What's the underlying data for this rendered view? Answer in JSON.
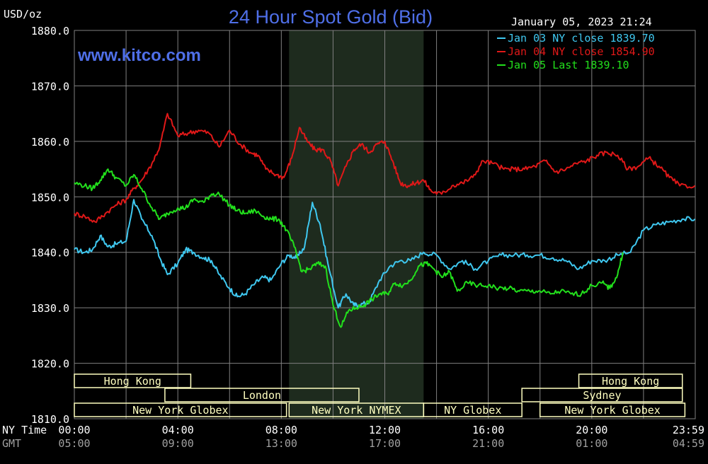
{
  "header": {
    "title": "24 Hour Spot Gold (Bid)",
    "unit_label": "USD/oz",
    "datetime": "January 05, 2023 21:24",
    "watermark": "www.kitco.com"
  },
  "colors": {
    "background": "#000000",
    "grid": "#808080",
    "title": "#4f6fe8",
    "text": "#ffffff",
    "session_label_bg": "#ffffc0",
    "session_label_text": "#000000",
    "shade": "#1e2b1e"
  },
  "chart_data": {
    "type": "line",
    "title": "24 Hour Spot Gold (Bid)",
    "ylabel": "USD/oz",
    "ylim": [
      1810.0,
      1880.0
    ],
    "y_ticks": [
      "1810.0",
      "1820.0",
      "1830.0",
      "1840.0",
      "1850.0",
      "1860.0",
      "1870.0",
      "1880.0"
    ],
    "x_range_hours": [
      0,
      24
    ],
    "x_axis_rows": [
      {
        "label": "NY Time",
        "ticks": [
          "00:00",
          "04:00",
          "08:00",
          "12:00",
          "16:00",
          "20:00",
          "23:59"
        ]
      },
      {
        "label": "GMT",
        "ticks": [
          "05:00",
          "09:00",
          "13:00",
          "17:00",
          "21:00",
          "01:00",
          "04:59"
        ]
      }
    ],
    "grid": true,
    "legend_position": "top-right",
    "shaded_period_hours": [
      8.3,
      13.5
    ],
    "sessions": [
      {
        "label": "Hong Kong",
        "start": 0.0,
        "end": 4.5
      },
      {
        "label": "Hong Kong",
        "start": 19.5,
        "end": 23.5
      },
      {
        "label": "London",
        "start": 3.5,
        "end": 11.0
      },
      {
        "label": "Sydney",
        "start": 17.3,
        "end": 23.5
      },
      {
        "label": "New York Globex",
        "start": 0.0,
        "end": 8.2
      },
      {
        "label": "New York NYMEX",
        "start": 8.3,
        "end": 13.5
      },
      {
        "label": "NY Globex",
        "start": 13.5,
        "end": 17.3
      },
      {
        "label": "New York Globex",
        "start": 18.0,
        "end": 23.6
      }
    ],
    "series": [
      {
        "name": "Jan 03 NY close 1839.70",
        "color": "#3fc8f0",
        "x": [
          0.0,
          0.4,
          0.7,
          1.0,
          1.3,
          1.6,
          2.0,
          2.3,
          2.6,
          3.0,
          3.3,
          3.6,
          4.0,
          4.3,
          4.6,
          5.0,
          5.3,
          5.6,
          6.0,
          6.3,
          6.6,
          7.0,
          7.3,
          7.6,
          8.0,
          8.3,
          8.6,
          8.9,
          9.2,
          9.5,
          9.8,
          10.2,
          10.5,
          10.8,
          11.0,
          11.4,
          11.8,
          12.2,
          12.6,
          13.0,
          13.5,
          14.0,
          14.5,
          15.0,
          15.5,
          16.0,
          16.5,
          17.0,
          17.5,
          18.0,
          18.5,
          19.0,
          19.5,
          20.0,
          20.5,
          21.0,
          21.5,
          22.0,
          22.5,
          23.0,
          23.5,
          23.99
        ],
        "values": [
          1840.5,
          1840.0,
          1840.5,
          1843.0,
          1841.0,
          1841.5,
          1842.0,
          1849.5,
          1846.0,
          1843.0,
          1839.0,
          1836.0,
          1838.0,
          1840.5,
          1840.0,
          1839.0,
          1838.5,
          1836.0,
          1833.5,
          1832.0,
          1832.5,
          1834.5,
          1835.5,
          1835.0,
          1838.0,
          1839.5,
          1839.0,
          1841.0,
          1849.0,
          1845.0,
          1838.0,
          1830.0,
          1832.5,
          1830.5,
          1830.5,
          1831.0,
          1835.0,
          1837.5,
          1838.5,
          1838.5,
          1840.0,
          1839.5,
          1837.0,
          1838.5,
          1837.0,
          1838.5,
          1839.5,
          1839.5,
          1839.5,
          1839.5,
          1839.0,
          1838.5,
          1837.0,
          1838.5,
          1838.5,
          1839.5,
          1840.0,
          1844.0,
          1845.0,
          1845.5,
          1846.0,
          1846.0
        ]
      },
      {
        "name": "Jan 04 NY close 1854.90",
        "color": "#e01818",
        "x": [
          0.0,
          0.4,
          0.8,
          1.2,
          1.6,
          2.0,
          2.3,
          2.6,
          3.0,
          3.3,
          3.6,
          4.0,
          4.4,
          4.8,
          5.2,
          5.6,
          6.0,
          6.4,
          6.8,
          7.1,
          7.4,
          7.8,
          8.1,
          8.4,
          8.7,
          9.0,
          9.3,
          9.6,
          9.9,
          10.2,
          10.5,
          10.8,
          11.1,
          11.4,
          11.7,
          12.0,
          12.3,
          12.6,
          12.9,
          13.2,
          13.5,
          13.8,
          14.2,
          14.6,
          15.0,
          15.4,
          15.8,
          16.2,
          16.6,
          17.0,
          17.4,
          17.8,
          18.2,
          18.6,
          19.0,
          19.4,
          19.8,
          20.2,
          20.6,
          21.0,
          21.4,
          21.8,
          22.2,
          22.6,
          23.0,
          23.4,
          23.99
        ],
        "values": [
          1847.0,
          1846.5,
          1845.5,
          1847.0,
          1848.5,
          1849.5,
          1851.5,
          1853.0,
          1856.0,
          1859.0,
          1865.0,
          1861.0,
          1861.5,
          1862.0,
          1861.5,
          1859.0,
          1862.0,
          1859.5,
          1858.0,
          1857.5,
          1855.0,
          1854.0,
          1853.5,
          1857.0,
          1862.5,
          1860.0,
          1858.5,
          1858.5,
          1856.5,
          1852.0,
          1855.5,
          1858.5,
          1859.5,
          1858.0,
          1859.5,
          1860.0,
          1856.5,
          1852.5,
          1852.0,
          1852.5,
          1853.0,
          1851.0,
          1850.5,
          1852.0,
          1852.5,
          1853.5,
          1856.5,
          1856.0,
          1855.0,
          1855.0,
          1855.0,
          1855.5,
          1856.5,
          1854.5,
          1855.0,
          1856.0,
          1856.5,
          1857.5,
          1858.0,
          1857.5,
          1855.0,
          1855.5,
          1857.0,
          1855.5,
          1853.5,
          1852.0,
          1852.0
        ]
      },
      {
        "name": "Jan 05 Last 1839.10",
        "color": "#22e01c",
        "x": [
          0.0,
          0.4,
          0.7,
          1.0,
          1.3,
          1.6,
          2.0,
          2.3,
          2.6,
          3.0,
          3.3,
          3.6,
          4.0,
          4.3,
          4.6,
          5.0,
          5.3,
          5.6,
          6.0,
          6.3,
          6.6,
          7.0,
          7.3,
          7.6,
          7.9,
          8.2,
          8.5,
          8.8,
          9.1,
          9.4,
          9.7,
          10.0,
          10.3,
          10.6,
          10.9,
          11.2,
          11.5,
          11.8,
          12.1,
          12.4,
          12.7,
          13.0,
          13.3,
          13.6,
          13.9,
          14.2,
          14.5,
          14.8,
          15.2,
          15.6,
          16.0,
          16.4,
          16.8,
          17.2,
          17.6,
          18.0,
          18.4,
          18.8,
          19.2,
          19.6,
          20.0,
          20.4,
          20.7,
          21.0,
          21.2
        ],
        "values": [
          1852.5,
          1852.0,
          1851.5,
          1853.0,
          1855.0,
          1853.5,
          1852.0,
          1854.0,
          1851.5,
          1848.0,
          1846.0,
          1847.0,
          1848.0,
          1848.0,
          1849.5,
          1849.0,
          1850.5,
          1850.5,
          1848.5,
          1847.5,
          1847.0,
          1847.5,
          1846.5,
          1846.0,
          1846.0,
          1844.0,
          1841.0,
          1836.5,
          1837.0,
          1838.0,
          1837.5,
          1830.5,
          1826.5,
          1829.5,
          1830.0,
          1830.5,
          1831.5,
          1832.5,
          1832.5,
          1834.5,
          1834.0,
          1835.0,
          1837.5,
          1838.0,
          1837.0,
          1835.5,
          1836.5,
          1833.0,
          1834.5,
          1834.0,
          1834.0,
          1833.5,
          1833.5,
          1833.0,
          1833.0,
          1833.0,
          1832.5,
          1833.0,
          1832.5,
          1832.5,
          1834.0,
          1834.5,
          1833.5,
          1836.0,
          1840.0
        ]
      }
    ]
  }
}
